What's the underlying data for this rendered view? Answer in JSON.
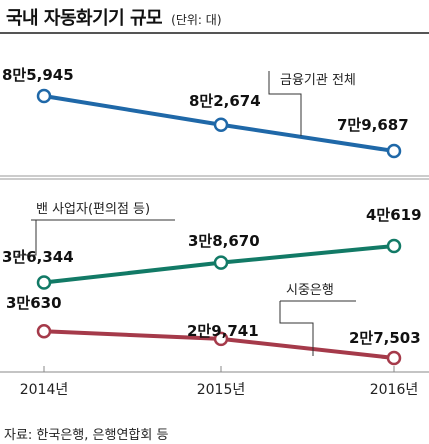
{
  "header": {
    "title": "국내 자동화기기 규모",
    "unit": "(단위: 대)"
  },
  "source": "자료: 한국은행, 은행연합회 등",
  "colors": {
    "blue": "#1f68a8",
    "green": "#127a66",
    "red": "#a53a4a",
    "divider": "#999999",
    "rule": "#555555"
  },
  "chart_data": [
    {
      "type": "line",
      "x": [
        "2014년",
        "2015년",
        "2016년"
      ],
      "series": [
        {
          "name": "금융기관 전체",
          "values": [
            85945,
            82674,
            79687
          ],
          "labels": [
            "8만5,945",
            "8만2,674",
            "7만9,687"
          ]
        }
      ]
    },
    {
      "type": "line",
      "x": [
        "2014년",
        "2015년",
        "2016년"
      ],
      "xtick_labels": [
        "2014년",
        "2015년",
        "2016년"
      ],
      "series": [
        {
          "name": "밴 사업자(편의점 등)",
          "values": [
            36344,
            38670,
            40619
          ],
          "labels": [
            "3만6,344",
            "3만8,670",
            "4만619"
          ]
        },
        {
          "name": "시중은행",
          "values": [
            30630,
            29741,
            27503
          ],
          "labels": [
            "3만630",
            "2만9,741",
            "2만7,503"
          ]
        }
      ]
    }
  ]
}
